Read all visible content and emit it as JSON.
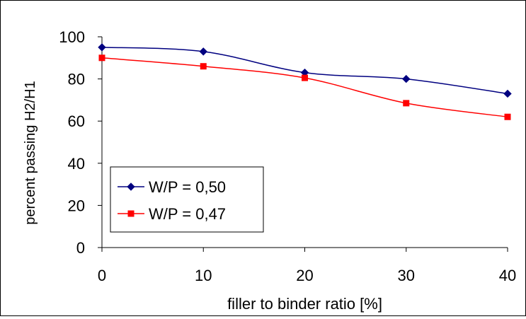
{
  "chart_data": {
    "type": "line",
    "title": "",
    "xlabel": "filler to binder ratio [%]",
    "ylabel": "percent passing H2/H1",
    "x": [
      0,
      10,
      20,
      30,
      40
    ],
    "xlim": [
      0,
      40
    ],
    "ylim": [
      0,
      100
    ],
    "xticks": [
      0,
      10,
      20,
      30,
      40
    ],
    "yticks": [
      0,
      20,
      40,
      60,
      80,
      100
    ],
    "grid": false,
    "legend_position": "lower-left",
    "series": [
      {
        "name": "W/P = 0,50",
        "values": [
          95,
          93,
          83,
          80,
          73
        ],
        "color": "#000080",
        "marker": "diamond"
      },
      {
        "name": "W/P = 0,47",
        "values": [
          90,
          86,
          80.5,
          68.5,
          62
        ],
        "color": "#ff0000",
        "marker": "square"
      }
    ]
  }
}
